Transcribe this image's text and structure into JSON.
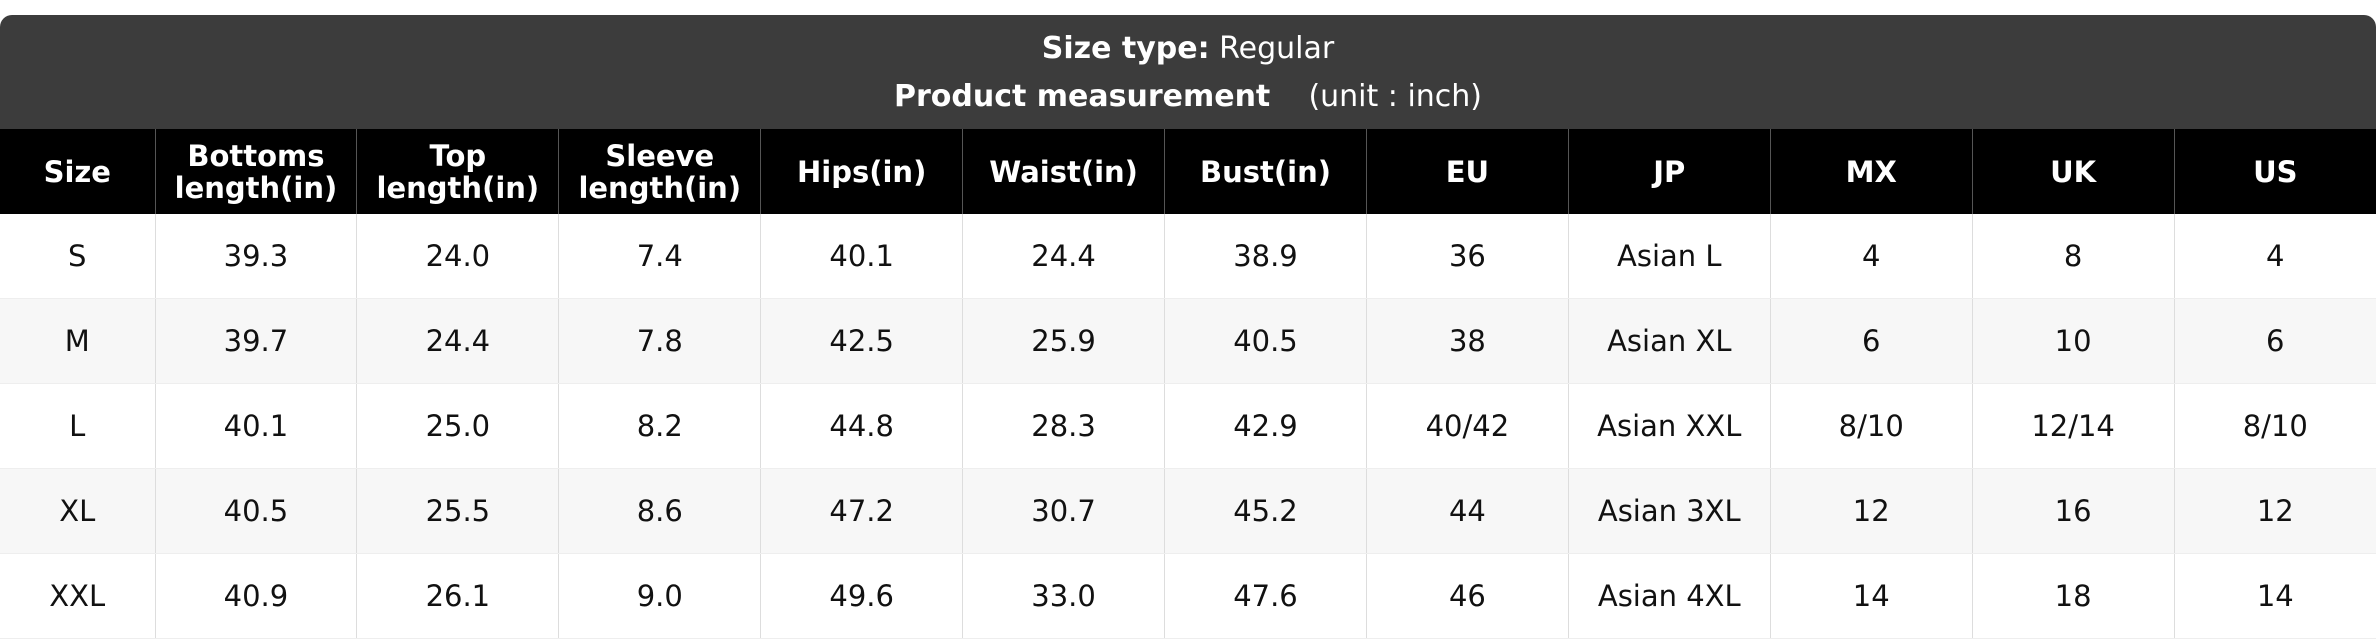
{
  "header": {
    "size_type_label": "Size type:",
    "size_type_value": "Regular",
    "title": "Product measurement",
    "unit": "(unit : inch)"
  },
  "table": {
    "columns": [
      "Size",
      "Bottoms length(in)",
      "Top length(in)",
      "Sleeve length(in)",
      "Hips(in)",
      "Waist(in)",
      "Bust(in)",
      "EU",
      "JP",
      "MX",
      "UK",
      "US"
    ],
    "rows": [
      [
        "S",
        "39.3",
        "24.0",
        "7.4",
        "40.1",
        "24.4",
        "38.9",
        "36",
        "Asian L",
        "4",
        "8",
        "4"
      ],
      [
        "M",
        "39.7",
        "24.4",
        "7.8",
        "42.5",
        "25.9",
        "40.5",
        "38",
        "Asian XL",
        "6",
        "10",
        "6"
      ],
      [
        "L",
        "40.1",
        "25.0",
        "8.2",
        "44.8",
        "28.3",
        "42.9",
        "40/42",
        "Asian XXL",
        "8/10",
        "12/14",
        "8/10"
      ],
      [
        "XL",
        "40.5",
        "25.5",
        "8.6",
        "47.2",
        "30.7",
        "45.2",
        "44",
        "Asian 3XL",
        "12",
        "16",
        "12"
      ],
      [
        "XXL",
        "40.9",
        "26.1",
        "9.0",
        "49.6",
        "33.0",
        "47.6",
        "46",
        "Asian 4XL",
        "14",
        "18",
        "14"
      ]
    ]
  }
}
